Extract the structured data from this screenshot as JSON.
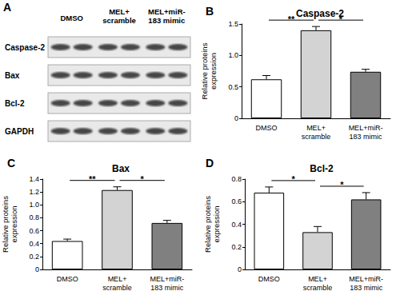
{
  "blot": {
    "panel": "A",
    "lanes": [
      "DMSO",
      "MEL+\nscramble",
      "MEL+miR-\n183 mimic"
    ],
    "rows": [
      "Caspase-2",
      "Bax",
      "Bcl-2",
      "GAPDH"
    ]
  },
  "chart_data": [
    {
      "panel": "B",
      "type": "bar",
      "title": "Caspase-2",
      "y_label": "Relative proteins\nexpression",
      "categories": [
        "DMSO",
        "MEL+\nscramble",
        "MEL+miR-\n183 mimic"
      ],
      "values": [
        0.62,
        1.4,
        0.74
      ],
      "errors": [
        0.06,
        0.06,
        0.04
      ],
      "colors": [
        "#ffffff",
        "#d3d3d3",
        "#808080"
      ],
      "ylim": [
        0,
        1.5
      ],
      "yticks": [
        0,
        0.5,
        {
          "value": 1,
          "label": "1.0"
        },
        1.5
      ],
      "annotations": [
        {
          "from": 0,
          "to": 1,
          "label": "**"
        },
        {
          "from": 1,
          "to": 2,
          "label": "*"
        }
      ]
    },
    {
      "panel": "C",
      "type": "bar",
      "title": "Bax",
      "y_label": "Relative proteins\nexpression",
      "categories": [
        "DMSO",
        "MEL+\nscramble",
        "MEL+miR-\n183 mimic"
      ],
      "values": [
        0.44,
        1.23,
        0.72
      ],
      "errors": [
        0.03,
        0.05,
        0.04
      ],
      "colors": [
        "#ffffff",
        "#d3d3d3",
        "#808080"
      ],
      "ylim": [
        0,
        1.4
      ],
      "yticks": [
        0,
        0.2,
        0.4,
        0.6,
        0.8,
        {
          "value": 1,
          "label": "1.0"
        },
        1.2,
        1.4
      ],
      "annotations": [
        {
          "from": 0,
          "to": 1,
          "label": "**"
        },
        {
          "from": 1,
          "to": 2,
          "label": "*"
        }
      ]
    },
    {
      "panel": "D",
      "type": "bar",
      "title": "Bcl-2",
      "y_label": "Relative proteins\nexpression",
      "categories": [
        "DMSO",
        "MEL+\nscramble",
        "MEL+miR-\n183 mimic"
      ],
      "values": [
        0.68,
        0.33,
        0.62
      ],
      "errors": [
        0.05,
        0.05,
        0.06
      ],
      "colors": [
        "#ffffff",
        "#d3d3d3",
        "#808080"
      ],
      "ylim": [
        0,
        0.8
      ],
      "yticks": [
        0,
        0.2,
        0.4,
        0.6,
        0.8
      ],
      "annotations": [
        {
          "from": 0,
          "to": 1,
          "label": "*"
        },
        {
          "from": 1,
          "to": 2,
          "label": "*"
        }
      ]
    }
  ]
}
